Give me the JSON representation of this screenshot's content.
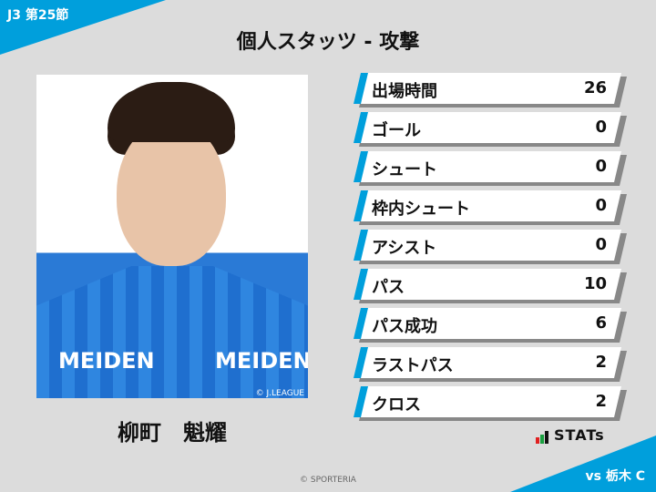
{
  "header": {
    "round": "J3 第25節",
    "title": "個人スタッツ - 攻撃"
  },
  "player": {
    "name": "柳町　魁耀",
    "photo_credit": "© J.LEAGUE",
    "sponsor": "MEIDEN"
  },
  "stats": [
    {
      "label": "出場時間",
      "value": "26"
    },
    {
      "label": "ゴール",
      "value": "0"
    },
    {
      "label": "シュート",
      "value": "0"
    },
    {
      "label": "枠内シュート",
      "value": "0"
    },
    {
      "label": "アシスト",
      "value": "0"
    },
    {
      "label": "パス",
      "value": "10"
    },
    {
      "label": "パス成功",
      "value": "6"
    },
    {
      "label": "ラストパス",
      "value": "2"
    },
    {
      "label": "クロス",
      "value": "2"
    }
  ],
  "footer": {
    "brand": "STATs",
    "opponent": "vs 栃木 C",
    "copyright": "© SPORTERIA"
  },
  "colors": {
    "accent": "#009fdc",
    "background": "#dcdcdc",
    "logo_red": "#e02020",
    "logo_green": "#1aa040"
  }
}
